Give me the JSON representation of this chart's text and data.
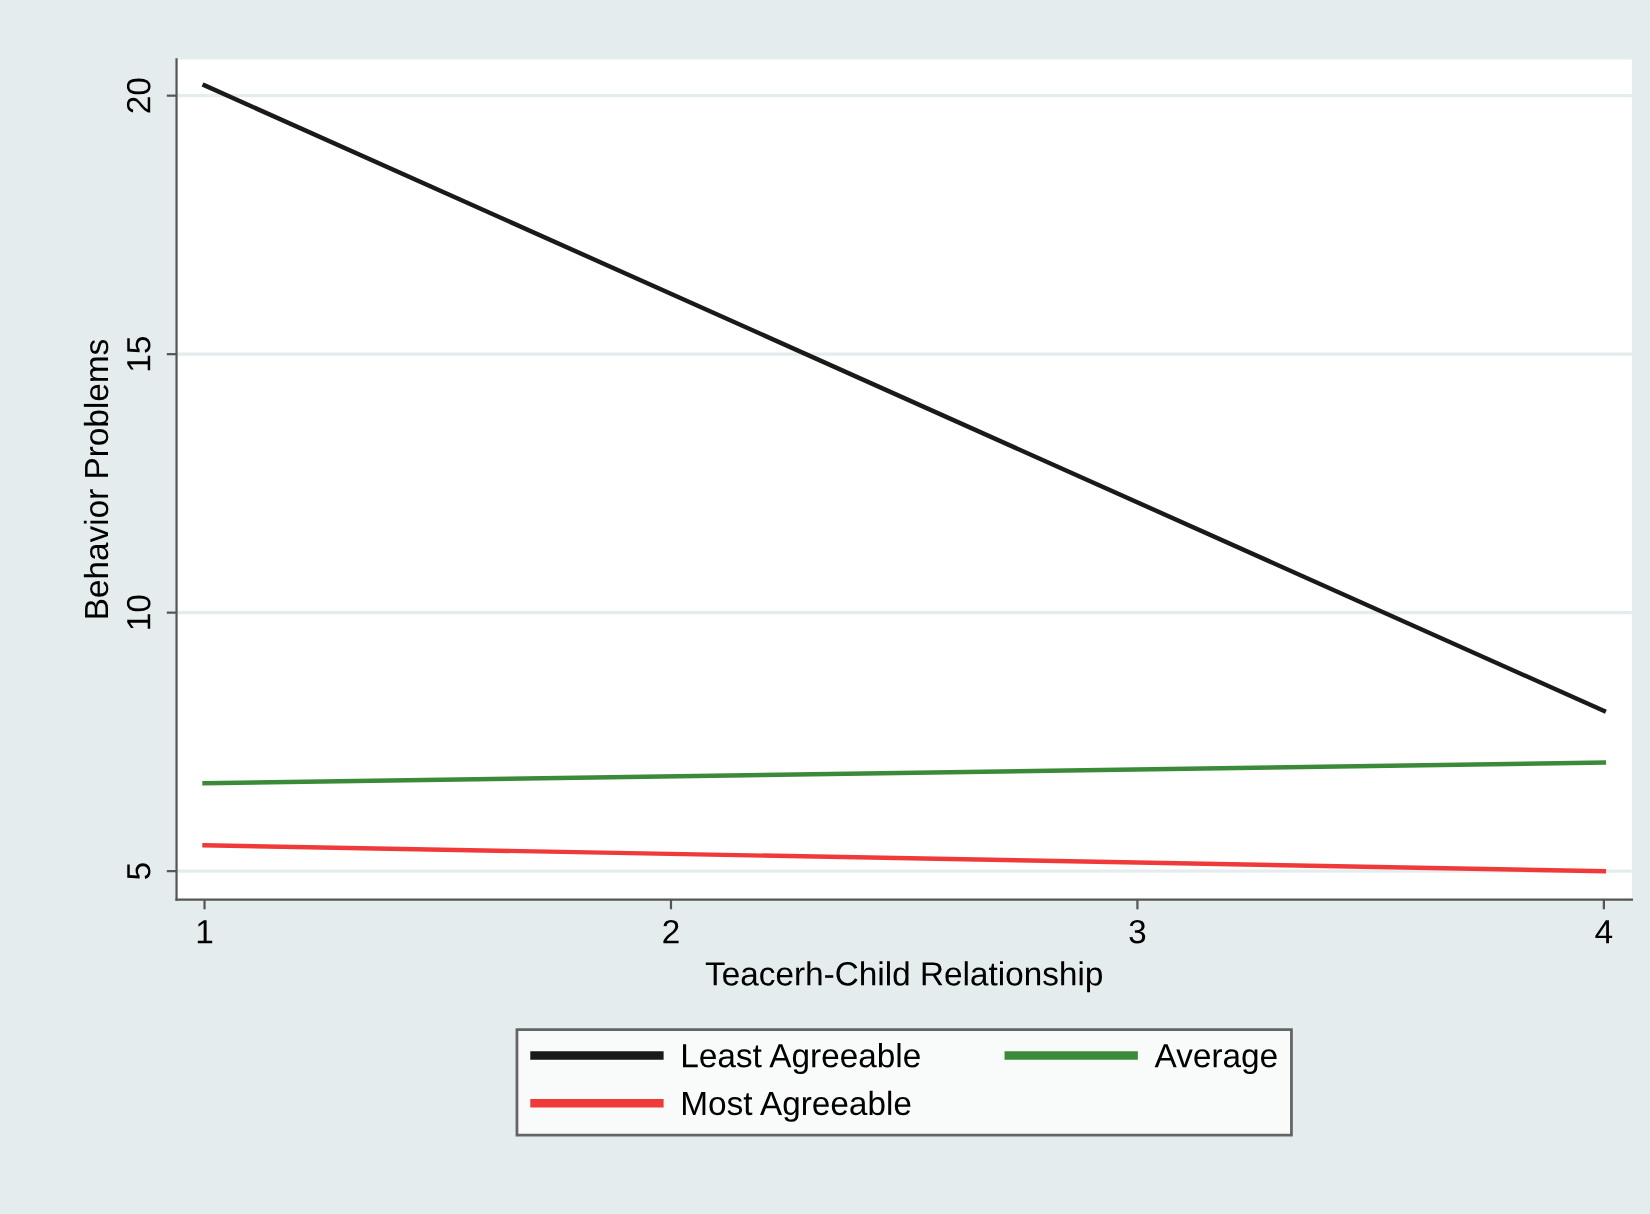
{
  "chart_data": {
    "type": "line",
    "xlabel": "Teacerh-Child Relationship",
    "ylabel": "Behavior Problems",
    "x": [
      1,
      4
    ],
    "series": [
      {
        "name": "Least Agreeable",
        "color": "#1a1a1a",
        "values": [
          20.2,
          8.1
        ]
      },
      {
        "name": "Average",
        "color": "#3a8a3a",
        "values": [
          6.7,
          7.1
        ]
      },
      {
        "name": "Most Agreeable",
        "color": "#f03a3a",
        "values": [
          5.5,
          5.0
        ]
      }
    ],
    "xlim": [
      0.94,
      4.06
    ],
    "ylim": [
      4.45,
      20.7
    ],
    "xticks": [
      1,
      2,
      3,
      4
    ],
    "yticks": [
      5,
      10,
      15,
      20
    ],
    "grid": "y",
    "legend": "bottom",
    "marker": "none",
    "line_style": "solid"
  }
}
